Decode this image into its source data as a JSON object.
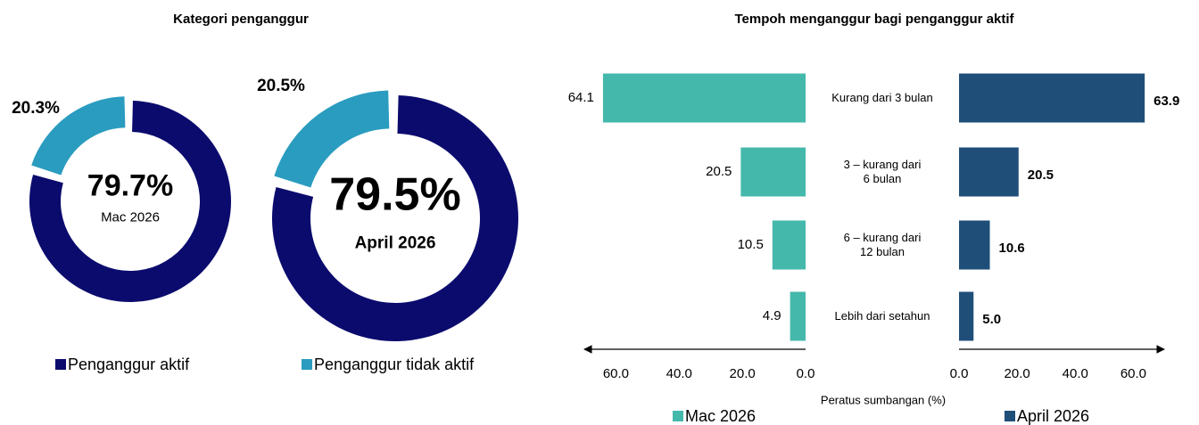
{
  "chart_data": [
    {
      "type": "donut",
      "title": "Kategori penganggur",
      "categories": [
        "Penganggur aktif",
        "Penganggur tidak aktif"
      ],
      "colors": [
        "#0b0b6e",
        "#2a9cbf"
      ],
      "series": [
        {
          "name": "Mac 2026",
          "values": [
            79.7,
            20.3
          ],
          "value_labels": [
            "79.7%",
            "20.3%"
          ]
        },
        {
          "name": "April 2026",
          "values": [
            79.5,
            20.5
          ],
          "value_labels": [
            "79.5%",
            "20.5%"
          ]
        }
      ]
    },
    {
      "type": "butterfly",
      "title": "Tempoh menganggur bagi penganggur aktif",
      "categories": [
        "Kurang dari 3 bulan",
        "3 – kurang dari\n6 bulan",
        "6 – kurang dari\n12 bulan",
        "Lebih dari setahun"
      ],
      "xlabel": "Peratus sumbangan (%)",
      "xlim": [
        0,
        70
      ],
      "xticks": [
        {
          "value": 0,
          "label": "0.0"
        },
        {
          "value": 20,
          "label": "20.0"
        },
        {
          "value": 40,
          "label": "40.0"
        },
        {
          "value": 60,
          "label": "60.0"
        }
      ],
      "series": [
        {
          "name": "Mac 2026",
          "color": "#44b8ab",
          "values": [
            64.1,
            20.5,
            10.5,
            4.9
          ]
        },
        {
          "name": "April 2026",
          "color": "#1f4e79",
          "values": [
            63.9,
            20.5,
            10.6,
            5.0
          ],
          "value_labels": [
            "63.9",
            "20.5",
            "10.6",
            "5.0"
          ]
        }
      ]
    }
  ]
}
